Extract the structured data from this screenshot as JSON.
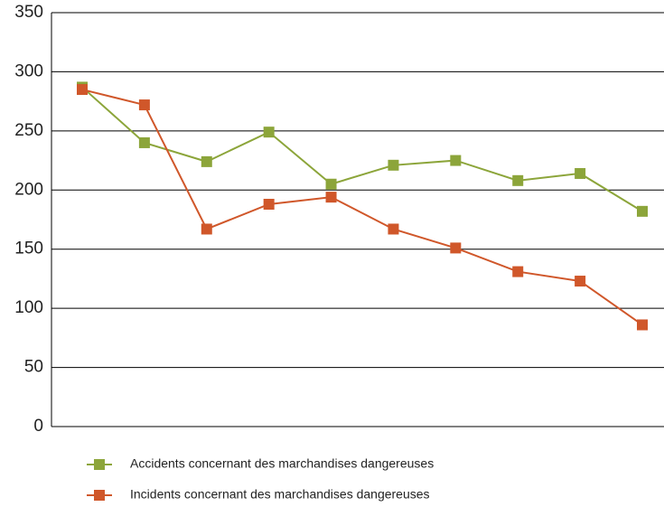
{
  "chart_data": {
    "type": "line",
    "categories": [
      null,
      null,
      null,
      null,
      null,
      null,
      null,
      null,
      null,
      null
    ],
    "series": [
      {
        "name": "Accidents concernant des marchandises dangereuses",
        "color": "#8ca53a",
        "values": [
          287,
          240,
          224,
          249,
          205,
          221,
          225,
          208,
          214,
          182
        ]
      },
      {
        "name": "Incidents concernant des marchandises dangereuses",
        "color": "#d0572a",
        "values": [
          285,
          272,
          167,
          188,
          194,
          167,
          151,
          131,
          123,
          86
        ]
      }
    ],
    "ylim": [
      0,
      350
    ],
    "yticks": [
      0,
      50,
      100,
      150,
      200,
      250,
      300,
      350
    ],
    "grid": true
  }
}
